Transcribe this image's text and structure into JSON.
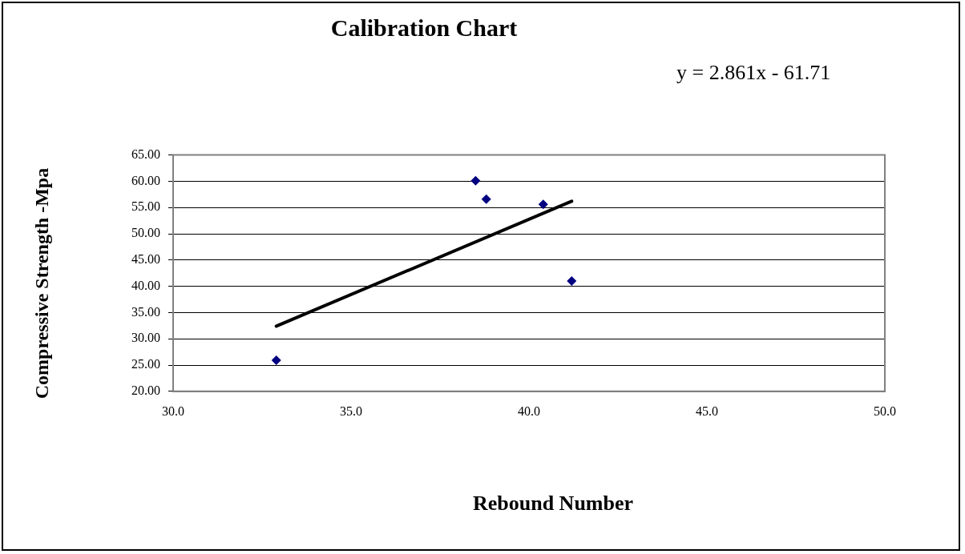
{
  "chart_data": {
    "type": "scatter",
    "title": "Calibration Chart",
    "xlabel": "Rebound Number",
    "ylabel": "Compressive Strength -Mpa",
    "annotations": [
      "y = 2.861x - 61.71"
    ],
    "series": [
      {
        "type": "scatter",
        "marker": "diamond",
        "color": "#000080",
        "x": [
          32.9,
          38.5,
          38.8,
          40.4,
          41.2
        ],
        "values": [
          25.9,
          60.1,
          56.6,
          55.6,
          41.0
        ]
      },
      {
        "type": "line",
        "marker": "none",
        "color": "#000000",
        "x": [
          32.9,
          41.2
        ],
        "values": [
          32.4,
          56.2
        ]
      }
    ],
    "xlim": [
      30,
      50
    ],
    "xticks": [
      {
        "value": 30,
        "label": "30.0"
      },
      {
        "value": 35,
        "label": "35.0"
      },
      {
        "value": 40,
        "label": "40.0"
      },
      {
        "value": 45,
        "label": "45.0"
      },
      {
        "value": 50,
        "label": "50.0"
      }
    ],
    "ylim": [
      20,
      65
    ],
    "yticks": [
      {
        "value": 20,
        "label": "20.00"
      },
      {
        "value": 25,
        "label": "25.00"
      },
      {
        "value": 30,
        "label": "30.00"
      },
      {
        "value": 35,
        "label": "35.00"
      },
      {
        "value": 40,
        "label": "40.00"
      },
      {
        "value": 45,
        "label": "45.00"
      },
      {
        "value": 50,
        "label": "50.00"
      },
      {
        "value": 55,
        "label": "55.00"
      },
      {
        "value": 60,
        "label": "60.00"
      },
      {
        "value": 65,
        "label": "65.00"
      }
    ],
    "grid": "y",
    "legend": false
  }
}
